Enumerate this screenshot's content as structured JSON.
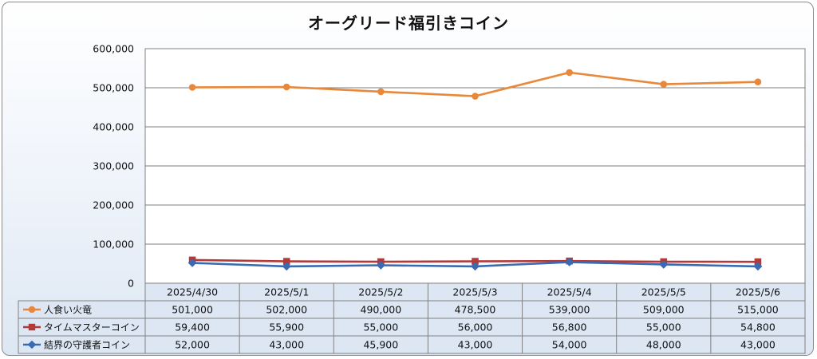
{
  "chart_data": {
    "type": "line",
    "title": "オーグリード福引きコイン",
    "categories": [
      "2025/4/30",
      "2025/5/1",
      "2025/5/2",
      "2025/5/3",
      "2025/5/4",
      "2025/5/5",
      "2025/5/6"
    ],
    "series": [
      {
        "name": "人食い火竜",
        "color": "#e8883a",
        "marker": "circle",
        "values": [
          501000,
          502000,
          490000,
          478500,
          539000,
          509000,
          515000
        ],
        "labels": [
          "501,000",
          "502,000",
          "490,000",
          "478,500",
          "539,000",
          "509,000",
          "515,000"
        ]
      },
      {
        "name": "タイムマスターコイン",
        "color": "#b23a3a",
        "marker": "square",
        "values": [
          59400,
          55900,
          55000,
          56000,
          56800,
          55000,
          54800
        ],
        "labels": [
          "59,400",
          "55,900",
          "55,000",
          "56,000",
          "56,800",
          "55,000",
          "54,800"
        ]
      },
      {
        "name": "結界の守護者コイン",
        "color": "#3a6ab2",
        "marker": "diamond",
        "values": [
          52000,
          43000,
          45900,
          43000,
          54000,
          48000,
          43000
        ],
        "labels": [
          "52,000",
          "43,000",
          "45,900",
          "43,000",
          "54,000",
          "48,000",
          "43,000"
        ]
      }
    ],
    "ylim": [
      0,
      600000
    ],
    "yticks": [
      0,
      100000,
      200000,
      300000,
      400000,
      500000,
      600000
    ],
    "ytick_labels": [
      "0",
      "100,000",
      "200,000",
      "300,000",
      "400,000",
      "500,000",
      "600,000"
    ],
    "grid": true,
    "legend": "data-table"
  }
}
